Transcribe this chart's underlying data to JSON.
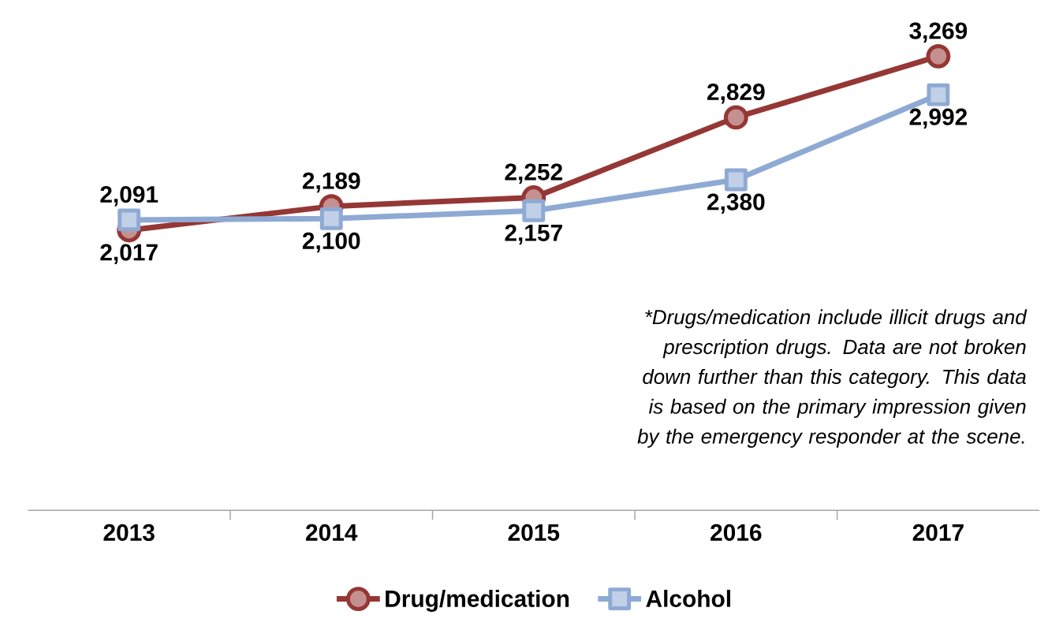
{
  "chart_data": {
    "type": "line",
    "categories": [
      "2013",
      "2014",
      "2015",
      "2016",
      "2017"
    ],
    "series": [
      {
        "name": "Drug/medication",
        "color": "#953735",
        "marker": "circle",
        "values": [
          2017,
          2189,
          2252,
          2829,
          3269
        ],
        "value_labels": [
          "2,017",
          "2,189",
          "2,252",
          "2,829",
          "3,269"
        ]
      },
      {
        "name": "Alcohol",
        "color": "#8eaad4",
        "marker": "square",
        "values": [
          2091,
          2100,
          2157,
          2380,
          2992
        ],
        "value_labels": [
          "2,091",
          "2,100",
          "2,157",
          "2,380",
          "2,992"
        ]
      }
    ],
    "tick_labels": "x",
    "legend": "bottom",
    "annotations": [
      "*Drugs/medication include illicit drugs and prescription drugs. Data are not broken down further than this category. This data is based on the primary impression given by the emergency responder at the scene."
    ]
  }
}
